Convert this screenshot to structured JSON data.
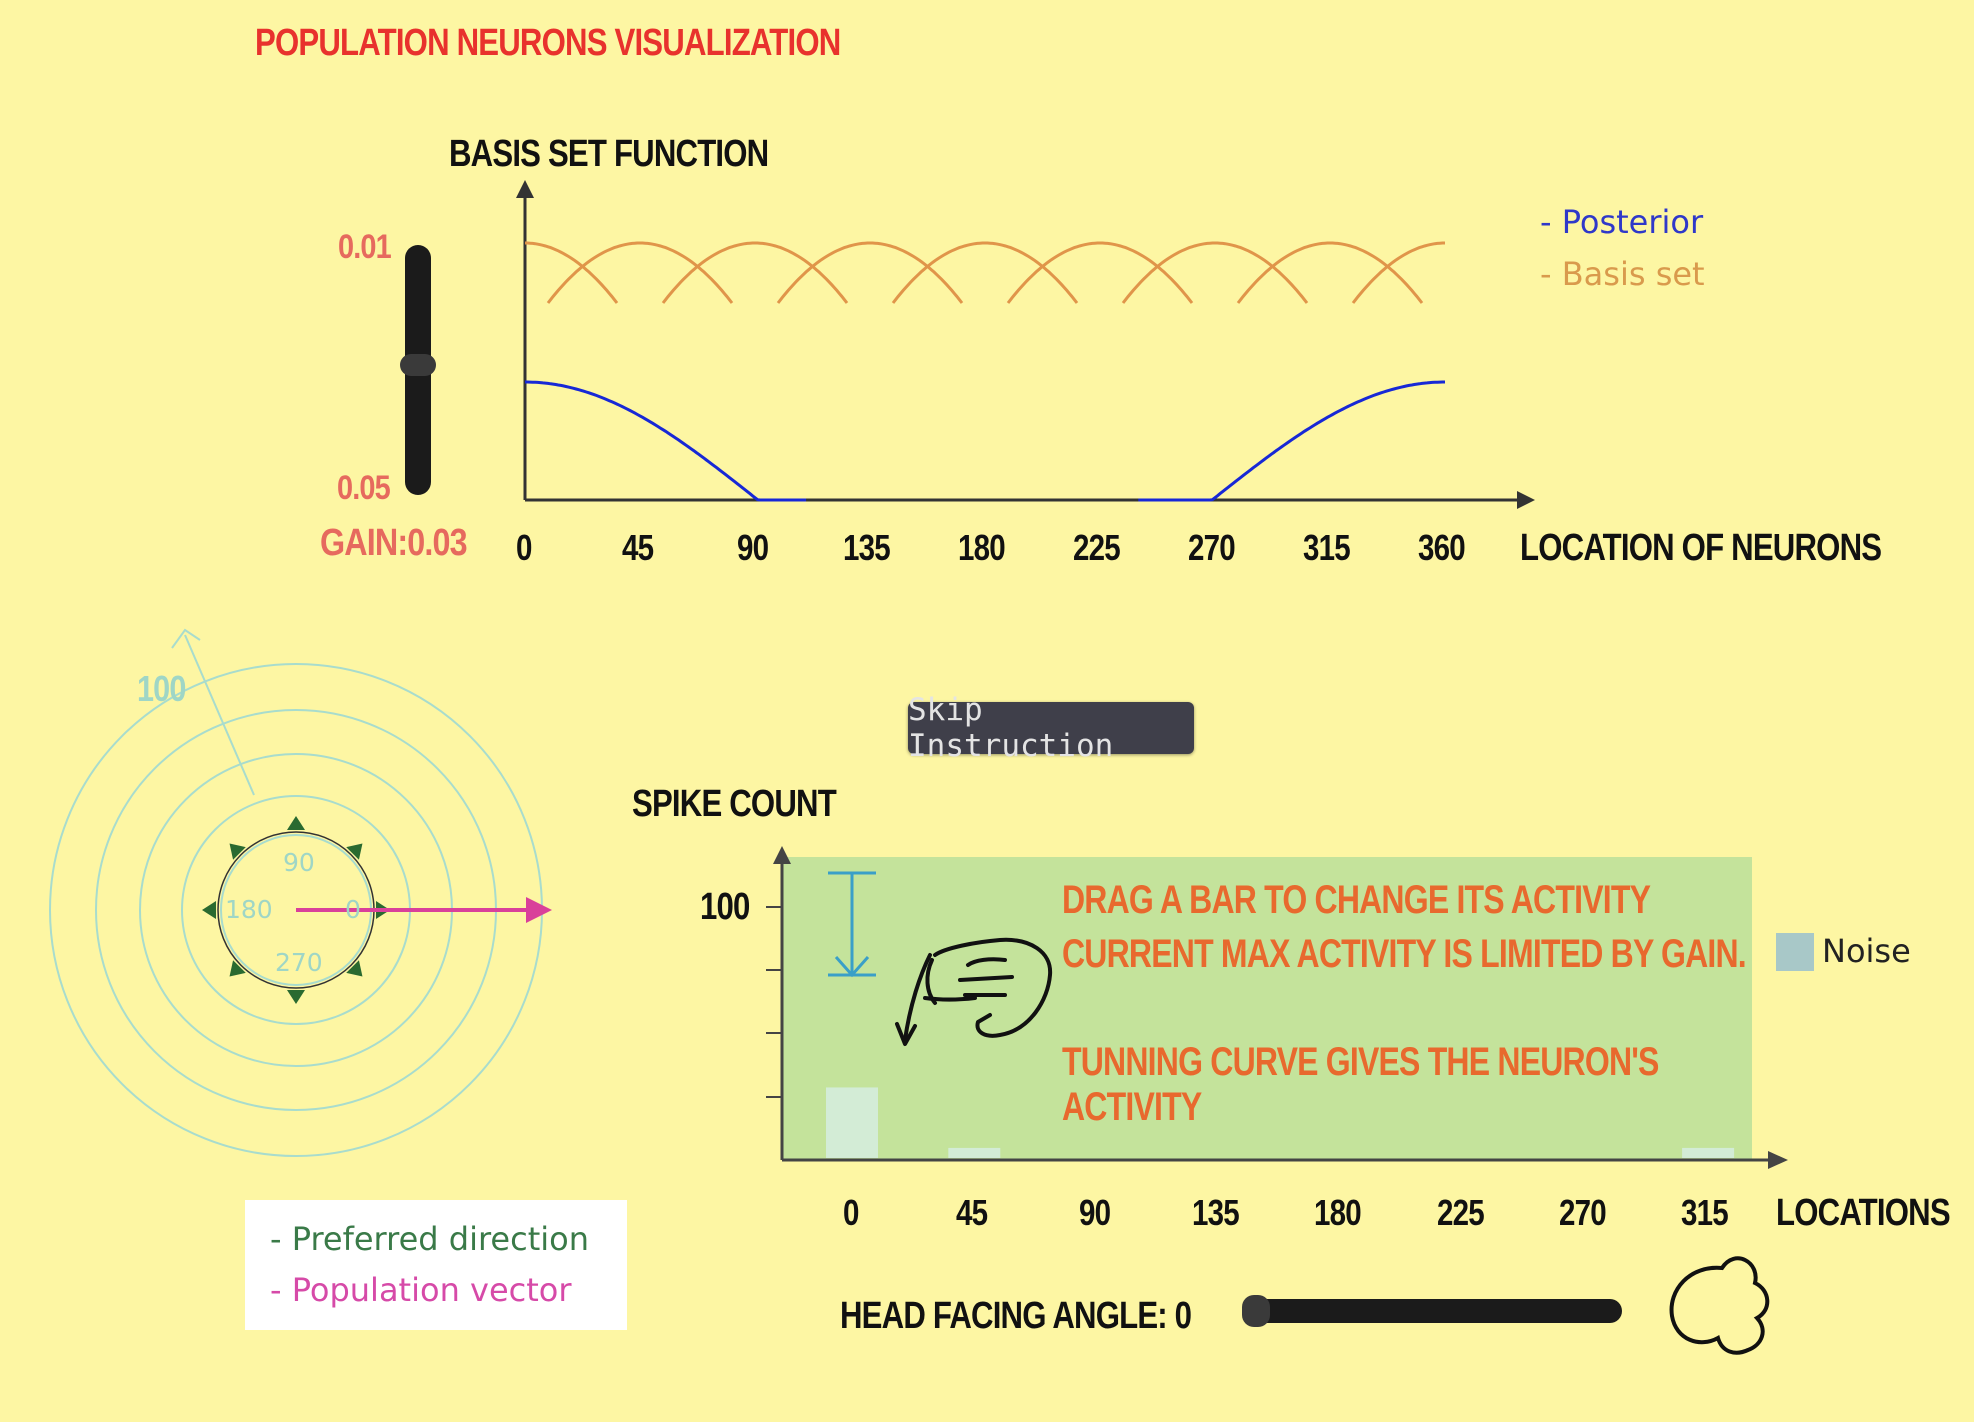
{
  "title": "POPULATION NEURONS VISUALIZATION",
  "basis_chart": {
    "title": "BASIS SET FUNCTION",
    "xlabel": "LOCATION OF NEURONS",
    "x_ticks": [
      "0",
      "45",
      "90",
      "135",
      "180",
      "225",
      "270",
      "315",
      "360"
    ],
    "legend": [
      {
        "label": "- Posterior",
        "color": "#2f38c9"
      },
      {
        "label": "- Basis set",
        "color": "#d99a4c"
      }
    ],
    "posterior_color": "#1728d6",
    "basis_color": "#e0954a"
  },
  "gain_slider": {
    "top_label": "0.01",
    "bottom_label": "0.05",
    "value_label": "GAIN:0.03",
    "value": 0.5
  },
  "polar": {
    "radius_label": "100",
    "angle_labels": [
      "90",
      "180",
      "0",
      "270"
    ],
    "pref_color": "#2a6a30",
    "vector_color": "#d9409a",
    "legend": [
      {
        "label": "- Preferred direction",
        "color": "#3a7a48"
      },
      {
        "label": "- Population vector",
        "color": "#d64aa8"
      }
    ]
  },
  "skip_button": "Skip Instruction",
  "spike_chart": {
    "ylabel": "SPIKE COUNT",
    "y_tick": "100",
    "xlabel": "LOCATIONS",
    "x_ticks": [
      "0",
      "45",
      "90",
      "135",
      "180",
      "225",
      "270",
      "315"
    ],
    "legend": "Noise",
    "noise_color": "#a8c8c8",
    "instructions": [
      "DRAG A BAR TO CHANGE ITS ACTIVITY",
      "CURRENT MAX ACTIVITY IS LIMITED BY GAIN.",
      "TUNNING CURVE GIVES THE NEURON'S ACTIVITY"
    ]
  },
  "chart_data": [
    {
      "type": "line",
      "title": "BASIS SET FUNCTION",
      "xlabel": "LOCATION OF NEURONS",
      "ylabel": "",
      "xlim": [
        0,
        360
      ],
      "series": [
        {
          "name": "- Posterior",
          "x": [
            0,
            45,
            90,
            110,
            240,
            270,
            315,
            360
          ],
          "y": [
            0.9,
            0.62,
            0.18,
            0.02,
            0.02,
            0.18,
            0.62,
            0.9
          ]
        },
        {
          "name": "- Basis set",
          "centers": [
            0,
            45,
            90,
            135,
            180,
            225,
            270,
            315,
            360
          ]
        }
      ]
    },
    {
      "type": "bar",
      "title": "",
      "ylabel": "SPIKE COUNT",
      "xlabel": "LOCATIONS",
      "ylim": [
        0,
        100
      ],
      "categories": [
        "0",
        "45",
        "90",
        "135",
        "180",
        "225",
        "270",
        "315"
      ],
      "series": [
        {
          "name": "Noise",
          "values": [
            28,
            4,
            0,
            0,
            0,
            0,
            0,
            4
          ]
        }
      ]
    }
  ],
  "head_slider": {
    "label": "HEAD FACING ANGLE: 0",
    "value": 0
  }
}
